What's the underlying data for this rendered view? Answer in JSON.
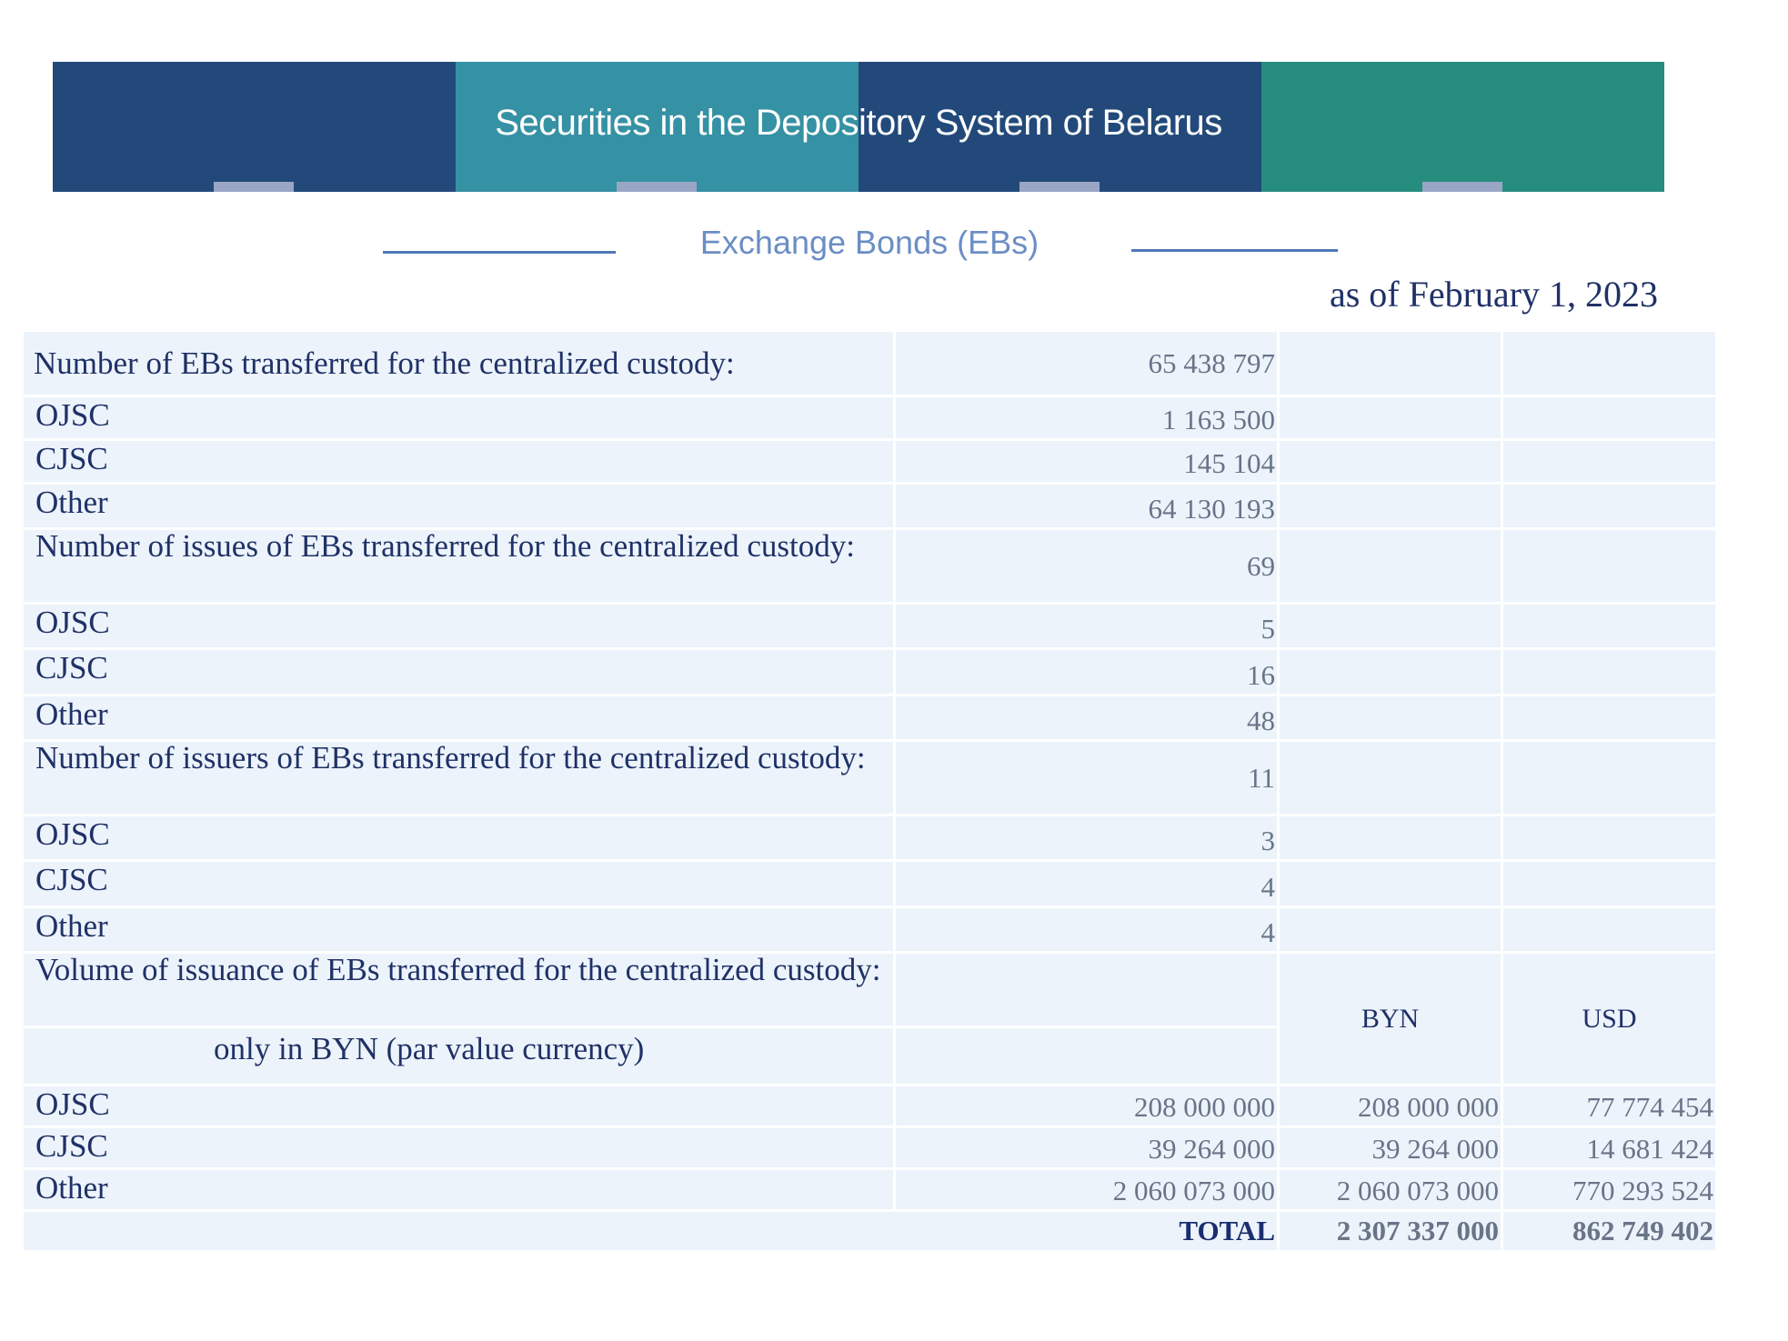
{
  "header": {
    "title": "Securities in the Depository System of Belarus",
    "segment_colors": [
      "#22497a",
      "#3591a4",
      "#22497a",
      "#268d7e"
    ],
    "tab_color": "#9aa6c6"
  },
  "section": {
    "title": "Exchange Bonds (EBs)",
    "date": "as of February 1, 2023"
  },
  "table": {
    "ebs_count": {
      "label": "Number of EBs transferred for the centralized custody:",
      "value": "65 438 797",
      "rows": [
        {
          "label": "OJSC",
          "value": "1 163 500"
        },
        {
          "label": "CJSC",
          "value": "145 104"
        },
        {
          "label": "Other",
          "value": "64 130 193"
        }
      ]
    },
    "issues_count": {
      "label": "Number of issues of EBs transferred for the centralized custody:",
      "value": "69",
      "rows": [
        {
          "label": "OJSC",
          "value": "5"
        },
        {
          "label": "CJSC",
          "value": "16"
        },
        {
          "label": "Other",
          "value": "48"
        }
      ]
    },
    "issuers_count": {
      "label": "Number of issuers of EBs transferred for the centralized custody:",
      "value": "11",
      "rows": [
        {
          "label": "OJSC",
          "value": "3"
        },
        {
          "label": "CJSC",
          "value": "4"
        },
        {
          "label": "Other",
          "value": "4"
        }
      ]
    },
    "volume": {
      "label": "Volume of issuance of EBs transferred for the centralized custody:",
      "sublabel": "only in BYN (par value currency)",
      "currency_byn": "BYN",
      "currency_usd": "USD",
      "rows": [
        {
          "label": "OJSC",
          "par": "208 000 000",
          "byn": "208 000 000",
          "usd": "77 774 454"
        },
        {
          "label": "CJSC",
          "par": "39 264 000",
          "byn": "39 264 000",
          "usd": "14 681 424"
        },
        {
          "label": "Other",
          "par": "2 060 073 000",
          "byn": "2 060 073 000",
          "usd": "770 293 524"
        }
      ],
      "total": {
        "label": "TOTAL",
        "byn": "2 307 337 000",
        "usd": "862 749 402"
      }
    }
  }
}
